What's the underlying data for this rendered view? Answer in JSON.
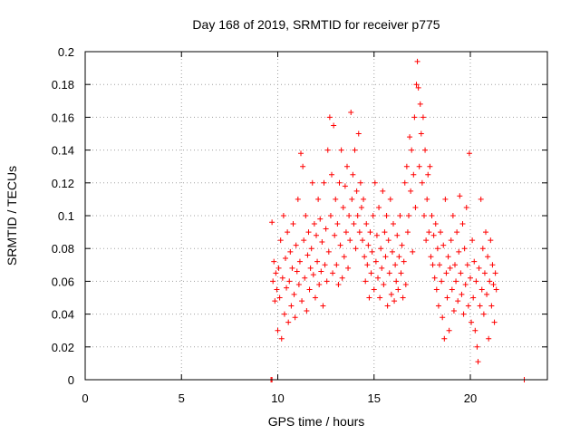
{
  "chart_data": {
    "type": "scatter",
    "title": "Day 168 of 2019, SRMTID for receiver p775",
    "xlabel": "GPS time / hours",
    "ylabel": "SRMTID / TECUs",
    "xlim": [
      0,
      24
    ],
    "ylim": [
      0,
      0.2
    ],
    "x_ticks": [
      0,
      5,
      10,
      15,
      20
    ],
    "x_tick_labels": [
      "0",
      "5",
      "10",
      "15",
      "20"
    ],
    "y_ticks": [
      0,
      0.02,
      0.04,
      0.06,
      0.08,
      0.1,
      0.12,
      0.14,
      0.16,
      0.18,
      0.2
    ],
    "y_tick_labels": [
      "0",
      "0.02",
      "0.04",
      "0.06",
      "0.08",
      "0.1",
      "0.12",
      "0.14",
      "0.16",
      "0.18",
      "0.2"
    ],
    "grid": true,
    "marker": "+",
    "color": "#ff0000",
    "series": [
      {
        "name": "SRMTID",
        "points": [
          [
            9.65,
            0.0
          ],
          [
            9.7,
            0.0
          ],
          [
            22.8,
            0.0
          ],
          [
            9.7,
            0.096
          ],
          [
            9.75,
            0.06
          ],
          [
            9.8,
            0.072
          ],
          [
            9.85,
            0.048
          ],
          [
            9.9,
            0.065
          ],
          [
            9.95,
            0.055
          ],
          [
            10.0,
            0.03
          ],
          [
            10.05,
            0.068
          ],
          [
            10.1,
            0.05
          ],
          [
            10.15,
            0.085
          ],
          [
            10.2,
            0.025
          ],
          [
            10.25,
            0.062
          ],
          [
            10.3,
            0.1
          ],
          [
            10.35,
            0.04
          ],
          [
            10.4,
            0.074
          ],
          [
            10.45,
            0.056
          ],
          [
            10.5,
            0.09
          ],
          [
            10.55,
            0.035
          ],
          [
            10.6,
            0.06
          ],
          [
            10.65,
            0.078
          ],
          [
            10.7,
            0.045
          ],
          [
            10.75,
            0.068
          ],
          [
            10.8,
            0.095
          ],
          [
            10.85,
            0.052
          ],
          [
            10.9,
            0.038
          ],
          [
            10.95,
            0.082
          ],
          [
            11.0,
            0.066
          ],
          [
            11.05,
            0.11
          ],
          [
            11.1,
            0.058
          ],
          [
            11.15,
            0.072
          ],
          [
            11.2,
            0.138
          ],
          [
            11.25,
            0.048
          ],
          [
            11.3,
            0.13
          ],
          [
            11.35,
            0.085
          ],
          [
            11.4,
            0.062
          ],
          [
            11.45,
            0.1
          ],
          [
            11.5,
            0.042
          ],
          [
            11.55,
            0.076
          ],
          [
            11.6,
            0.09
          ],
          [
            11.65,
            0.055
          ],
          [
            11.7,
            0.068
          ],
          [
            11.75,
            0.08
          ],
          [
            11.8,
            0.12
          ],
          [
            11.85,
            0.064
          ],
          [
            11.9,
            0.095
          ],
          [
            11.95,
            0.05
          ],
          [
            12.0,
            0.088
          ],
          [
            12.05,
            0.072
          ],
          [
            12.1,
            0.11
          ],
          [
            12.15,
            0.058
          ],
          [
            12.2,
            0.098
          ],
          [
            12.25,
            0.066
          ],
          [
            12.3,
            0.084
          ],
          [
            12.35,
            0.045
          ],
          [
            12.4,
            0.12
          ],
          [
            12.45,
            0.07
          ],
          [
            12.5,
            0.092
          ],
          [
            12.55,
            0.06
          ],
          [
            12.6,
            0.14
          ],
          [
            12.65,
            0.078
          ],
          [
            12.7,
            0.16
          ],
          [
            12.75,
            0.1
          ],
          [
            12.8,
            0.125
          ],
          [
            12.85,
            0.065
          ],
          [
            12.9,
            0.155
          ],
          [
            12.95,
            0.088
          ],
          [
            13.0,
            0.11
          ],
          [
            13.05,
            0.07
          ],
          [
            13.1,
            0.095
          ],
          [
            13.15,
            0.058
          ],
          [
            13.2,
            0.12
          ],
          [
            13.25,
            0.082
          ],
          [
            13.3,
            0.14
          ],
          [
            13.35,
            0.062
          ],
          [
            13.4,
            0.105
          ],
          [
            13.45,
            0.075
          ],
          [
            13.5,
            0.118
          ],
          [
            13.55,
            0.09
          ],
          [
            13.6,
            0.13
          ],
          [
            13.65,
            0.068
          ],
          [
            13.7,
            0.1
          ],
          [
            13.75,
            0.085
          ],
          [
            13.8,
            0.163
          ],
          [
            13.85,
            0.11
          ],
          [
            13.9,
            0.125
          ],
          [
            13.95,
            0.095
          ],
          [
            14.0,
            0.14
          ],
          [
            14.05,
            0.08
          ],
          [
            14.1,
            0.115
          ],
          [
            14.15,
            0.1
          ],
          [
            14.2,
            0.15
          ],
          [
            14.25,
            0.09
          ],
          [
            14.3,
            0.12
          ],
          [
            14.35,
            0.105
          ],
          [
            14.4,
            0.085
          ],
          [
            14.45,
            0.11
          ],
          [
            14.5,
            0.075
          ],
          [
            14.55,
            0.06
          ],
          [
            14.6,
            0.095
          ],
          [
            14.65,
            0.07
          ],
          [
            14.7,
            0.082
          ],
          [
            14.75,
            0.05
          ],
          [
            14.8,
            0.09
          ],
          [
            14.85,
            0.065
          ],
          [
            14.9,
            0.078
          ],
          [
            14.95,
            0.1
          ],
          [
            15.0,
            0.055
          ],
          [
            15.05,
            0.12
          ],
          [
            15.1,
            0.072
          ],
          [
            15.15,
            0.088
          ],
          [
            15.2,
            0.062
          ],
          [
            15.25,
            0.105
          ],
          [
            15.3,
            0.05
          ],
          [
            15.35,
            0.08
          ],
          [
            15.4,
            0.068
          ],
          [
            15.45,
            0.115
          ],
          [
            15.5,
            0.058
          ],
          [
            15.55,
            0.09
          ],
          [
            15.6,
            0.075
          ],
          [
            15.65,
            0.1
          ],
          [
            15.7,
            0.045
          ],
          [
            15.75,
            0.085
          ],
          [
            15.8,
            0.065
          ],
          [
            15.85,
            0.11
          ],
          [
            15.9,
            0.052
          ],
          [
            15.95,
            0.078
          ],
          [
            16.0,
            0.095
          ],
          [
            16.05,
            0.048
          ],
          [
            16.1,
            0.07
          ],
          [
            16.15,
            0.06
          ],
          [
            16.2,
            0.088
          ],
          [
            16.25,
            0.055
          ],
          [
            16.3,
            0.075
          ],
          [
            16.35,
            0.1
          ],
          [
            16.4,
            0.065
          ],
          [
            16.45,
            0.082
          ],
          [
            16.5,
            0.05
          ],
          [
            16.55,
            0.072
          ],
          [
            16.6,
            0.12
          ],
          [
            16.65,
            0.058
          ],
          [
            16.7,
            0.13
          ],
          [
            16.75,
            0.09
          ],
          [
            16.8,
            0.1
          ],
          [
            16.85,
            0.148
          ],
          [
            16.9,
            0.115
          ],
          [
            16.95,
            0.14
          ],
          [
            17.0,
            0.078
          ],
          [
            17.05,
            0.125
          ],
          [
            17.1,
            0.16
          ],
          [
            17.15,
            0.105
          ],
          [
            17.2,
            0.18
          ],
          [
            17.25,
            0.194
          ],
          [
            17.3,
            0.178
          ],
          [
            17.35,
            0.13
          ],
          [
            17.4,
            0.168
          ],
          [
            17.45,
            0.15
          ],
          [
            17.5,
            0.12
          ],
          [
            17.55,
            0.16
          ],
          [
            17.6,
            0.1
          ],
          [
            17.65,
            0.14
          ],
          [
            17.7,
            0.085
          ],
          [
            17.75,
            0.11
          ],
          [
            17.8,
            0.125
          ],
          [
            17.85,
            0.09
          ],
          [
            17.9,
            0.13
          ],
          [
            17.95,
            0.075
          ],
          [
            18.0,
            0.1
          ],
          [
            18.05,
            0.07
          ],
          [
            18.1,
            0.088
          ],
          [
            18.15,
            0.062
          ],
          [
            18.2,
            0.095
          ],
          [
            18.25,
            0.055
          ],
          [
            18.3,
            0.08
          ],
          [
            18.35,
            0.045
          ],
          [
            18.4,
            0.07
          ],
          [
            18.45,
            0.09
          ],
          [
            18.5,
            0.06
          ],
          [
            18.55,
            0.038
          ],
          [
            18.6,
            0.082
          ],
          [
            18.65,
            0.025
          ],
          [
            18.7,
            0.11
          ],
          [
            18.75,
            0.065
          ],
          [
            18.8,
            0.05
          ],
          [
            18.85,
            0.075
          ],
          [
            18.9,
            0.03
          ],
          [
            18.95,
            0.068
          ],
          [
            19.0,
            0.085
          ],
          [
            19.05,
            0.055
          ],
          [
            19.1,
            0.1
          ],
          [
            19.15,
            0.042
          ],
          [
            19.2,
            0.07
          ],
          [
            19.25,
            0.06
          ],
          [
            19.3,
            0.09
          ],
          [
            19.35,
            0.048
          ],
          [
            19.4,
            0.078
          ],
          [
            19.45,
            0.112
          ],
          [
            19.5,
            0.065
          ],
          [
            19.55,
            0.052
          ],
          [
            19.6,
            0.095
          ],
          [
            19.65,
            0.04
          ],
          [
            19.7,
            0.08
          ],
          [
            19.75,
            0.058
          ],
          [
            19.8,
            0.105
          ],
          [
            19.85,
            0.07
          ],
          [
            19.9,
            0.045
          ],
          [
            19.95,
            0.138
          ],
          [
            20.0,
            0.062
          ],
          [
            20.05,
            0.035
          ],
          [
            20.1,
            0.085
          ],
          [
            20.15,
            0.05
          ],
          [
            20.2,
            0.072
          ],
          [
            20.25,
            0.03
          ],
          [
            20.3,
            0.06
          ],
          [
            20.35,
            0.02
          ],
          [
            20.4,
            0.011
          ],
          [
            20.45,
            0.068
          ],
          [
            20.5,
            0.045
          ],
          [
            20.55,
            0.11
          ],
          [
            20.6,
            0.055
          ],
          [
            20.65,
            0.08
          ],
          [
            20.7,
            0.04
          ],
          [
            20.75,
            0.065
          ],
          [
            20.8,
            0.09
          ],
          [
            20.85,
            0.052
          ],
          [
            20.9,
            0.075
          ],
          [
            20.95,
            0.025
          ],
          [
            21.0,
            0.06
          ],
          [
            21.05,
            0.085
          ],
          [
            21.1,
            0.045
          ],
          [
            21.15,
            0.07
          ],
          [
            21.2,
            0.058
          ],
          [
            21.25,
            0.035
          ],
          [
            21.3,
            0.065
          ],
          [
            21.35,
            0.055
          ]
        ]
      }
    ]
  }
}
